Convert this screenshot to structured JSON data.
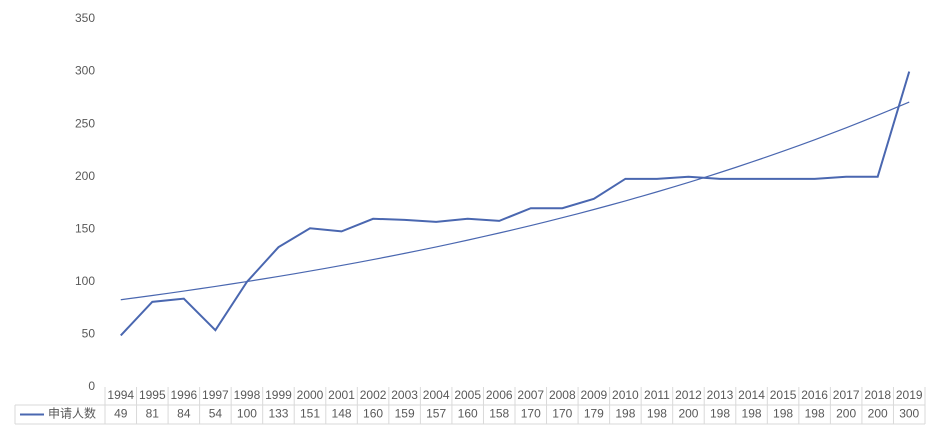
{
  "chart_data": {
    "type": "line",
    "categories": [
      "1994",
      "1995",
      "1996",
      "1997",
      "1998",
      "1999",
      "2000",
      "2001",
      "2002",
      "2003",
      "2004",
      "2005",
      "2006",
      "2007",
      "2008",
      "2009",
      "2010",
      "2011",
      "2012",
      "2013",
      "2014",
      "2015",
      "2016",
      "2017",
      "2018",
      "2019"
    ],
    "series": [
      {
        "name": "申请人数",
        "color": "#4a67b0",
        "values": [
          49,
          81,
          84,
          54,
          100,
          133,
          151,
          148,
          160,
          159,
          157,
          160,
          158,
          170,
          170,
          179,
          198,
          198,
          200,
          198,
          198,
          198,
          198,
          200,
          200,
          300
        ]
      }
    ],
    "trend": [
      83,
      271
    ],
    "ylim": [
      0,
      350
    ],
    "yticks": [
      0,
      50,
      100,
      150,
      200,
      250,
      300,
      350
    ],
    "grid": false
  }
}
